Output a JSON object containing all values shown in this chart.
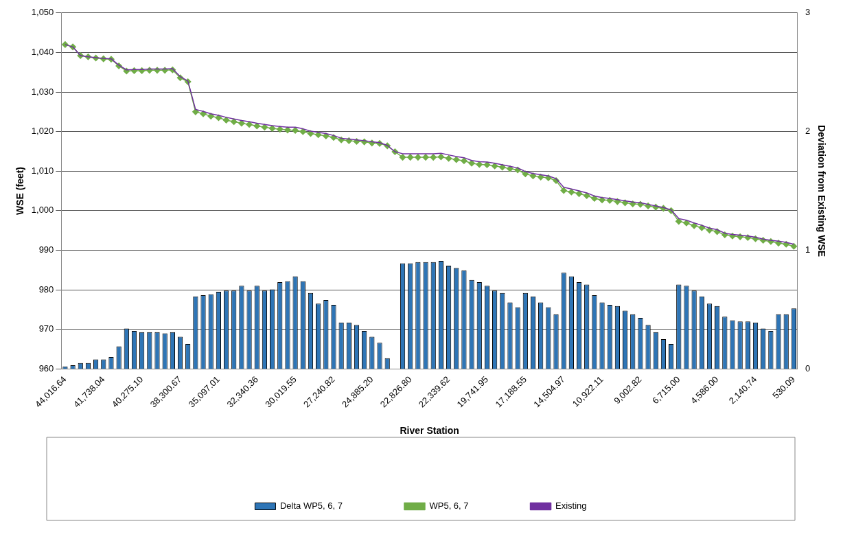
{
  "chart_data": {
    "type": "bar",
    "xlabel": "River Station",
    "ylabel": "WSE (feet)",
    "y2label": "Deviation from Existing WSE",
    "categories": [
      "44,016.64",
      null,
      null,
      null,
      null,
      "41,738.04",
      null,
      null,
      null,
      null,
      "40,275.10",
      null,
      null,
      null,
      null,
      "38,300.67",
      null,
      null,
      null,
      null,
      "35,097.01",
      null,
      null,
      null,
      null,
      "32,340.36",
      null,
      null,
      null,
      null,
      "30,019.55",
      null,
      null,
      null,
      null,
      "27,240.82",
      null,
      null,
      null,
      null,
      "24,885.20",
      null,
      null,
      null,
      null,
      "22,826.80",
      null,
      null,
      null,
      null,
      "22,339.62",
      null,
      null,
      null,
      null,
      "19,741.95",
      null,
      null,
      null,
      null,
      "17,188.55",
      null,
      null,
      null,
      null,
      "14,504.97",
      null,
      null,
      null,
      null,
      "10,922.11",
      null,
      null,
      null,
      null,
      "9,002.82",
      null,
      null,
      null,
      null,
      "6,715.00",
      null,
      null,
      null,
      null,
      "4,586.00",
      null,
      null,
      null,
      null,
      "2,140.74",
      null,
      null,
      null,
      null,
      "530.09"
    ],
    "series": [
      {
        "name": "Delta WP5, 6, 7",
        "type": "bar",
        "axis": "y2",
        "color": "#2e75b6",
        "values": [
          0.02,
          0.03,
          0.05,
          0.05,
          0.08,
          0.08,
          0.1,
          0.19,
          0.34,
          0.32,
          0.31,
          0.31,
          0.31,
          0.3,
          0.31,
          0.27,
          0.21,
          0.61,
          0.62,
          0.63,
          0.65,
          0.66,
          0.66,
          0.7,
          0.66,
          0.7,
          0.66,
          0.67,
          0.73,
          0.74,
          0.78,
          0.74,
          0.64,
          0.55,
          0.58,
          0.54,
          0.39,
          0.39,
          0.37,
          0.32,
          0.27,
          0.22,
          0.09,
          0,
          0.89,
          0.89,
          0.9,
          0.9,
          0.9,
          0.91,
          0.87,
          0.85,
          0.83,
          0.75,
          0.73,
          0.7,
          0.66,
          0.64,
          0.56,
          0.52,
          0.64,
          0.61,
          0.56,
          0.52,
          0.46,
          0.81,
          0.78,
          0.73,
          0.71,
          0.62,
          0.56,
          0.54,
          0.53,
          0.49,
          0.46,
          0.43,
          0.37,
          0.31,
          0.25,
          0.21,
          0.71,
          0.7,
          0.66,
          0.61,
          0.55,
          0.53,
          0.44,
          0.41,
          0.4,
          0.4,
          0.39,
          0.34,
          0.32,
          0.46,
          0.46,
          0.51
        ]
      },
      {
        "name": "WP5, 6, 7",
        "type": "line",
        "color": "#70ad47",
        "marker": "diamond",
        "values": [
          1042.0,
          1041.4,
          1039.2,
          1038.9,
          1038.6,
          1038.4,
          1038.3,
          1036.6,
          1035.3,
          1035.4,
          1035.4,
          1035.5,
          1035.5,
          1035.5,
          1035.6,
          1033.6,
          1032.6,
          1025.0,
          1024.5,
          1023.9,
          1023.5,
          1022.9,
          1022.5,
          1022.1,
          1021.8,
          1021.4,
          1021.1,
          1020.8,
          1020.6,
          1020.4,
          1020.3,
          1020.0,
          1019.5,
          1019.2,
          1018.9,
          1018.5,
          1017.9,
          1017.7,
          1017.5,
          1017.4,
          1017.1,
          1017.0,
          1016.4,
          1014.9,
          1013.5,
          1013.5,
          1013.5,
          1013.5,
          1013.5,
          1013.6,
          1013.2,
          1012.9,
          1012.6,
          1012.0,
          1011.7,
          1011.6,
          1011.3,
          1011.0,
          1010.6,
          1010.3,
          1009.3,
          1008.8,
          1008.5,
          1008.3,
          1007.6,
          1005.1,
          1004.7,
          1004.3,
          1003.8,
          1003.1,
          1002.7,
          1002.6,
          1002.3,
          1002.0,
          1001.7,
          1001.6,
          1001.2,
          1000.9,
          1000.6,
          1000.0,
          997.3,
          996.9,
          996.2,
          995.7,
          995.1,
          994.7,
          993.9,
          993.6,
          993.4,
          993.2,
          992.9,
          992.5,
          992.2,
          991.8,
          991.5,
          991.0
        ]
      },
      {
        "name": "Existing",
        "type": "line",
        "color": "#7030a0",
        "marker": "none",
        "values": [
          1042.0,
          1041.4,
          1039.2,
          1038.9,
          1038.7,
          1038.5,
          1038.4,
          1036.8,
          1035.6,
          1035.7,
          1035.7,
          1035.8,
          1035.8,
          1035.8,
          1035.9,
          1033.9,
          1032.8,
          1025.6,
          1025.1,
          1024.5,
          1024.1,
          1023.6,
          1023.2,
          1022.8,
          1022.5,
          1022.1,
          1021.8,
          1021.5,
          1021.3,
          1021.1,
          1021.1,
          1020.7,
          1020.1,
          1019.8,
          1019.5,
          1019.0,
          1018.3,
          1018.1,
          1017.9,
          1017.7,
          1017.4,
          1017.2,
          1016.5,
          1014.9,
          1014.4,
          1014.4,
          1014.4,
          1014.4,
          1014.4,
          1014.5,
          1014.1,
          1013.7,
          1013.4,
          1012.7,
          1012.4,
          1012.3,
          1012.0,
          1011.6,
          1011.2,
          1010.8,
          1009.9,
          1009.4,
          1009.1,
          1008.8,
          1008.1,
          1005.9,
          1005.5,
          1005.0,
          1004.5,
          1003.7,
          1003.3,
          1003.1,
          1002.8,
          1002.5,
          1002.2,
          1002.0,
          1001.6,
          1001.2,
          1000.8,
          1000.2,
          998.0,
          997.6,
          996.9,
          996.3,
          995.6,
          995.2,
          994.3,
          994.0,
          993.8,
          993.6,
          993.3,
          992.8,
          992.5,
          992.3,
          992.0,
          991.5
        ]
      }
    ],
    "ylim": [
      960,
      1050
    ],
    "yticks": [
      {
        "value": 960,
        "label": "960"
      },
      {
        "value": 970,
        "label": "970"
      },
      {
        "value": 980,
        "label": "980"
      },
      {
        "value": 990,
        "label": "990"
      },
      {
        "value": 1000,
        "label": "1,000"
      },
      {
        "value": 1010,
        "label": "1,010"
      },
      {
        "value": 1020,
        "label": "1,020"
      },
      {
        "value": 1030,
        "label": "1,030"
      },
      {
        "value": 1040,
        "label": "1,040"
      },
      {
        "value": 1050,
        "label": "1,050"
      }
    ],
    "y2lim": [
      0,
      3
    ],
    "y2ticks": [
      0,
      1,
      2,
      3
    ],
    "grid": "y",
    "legend": "bottom"
  }
}
